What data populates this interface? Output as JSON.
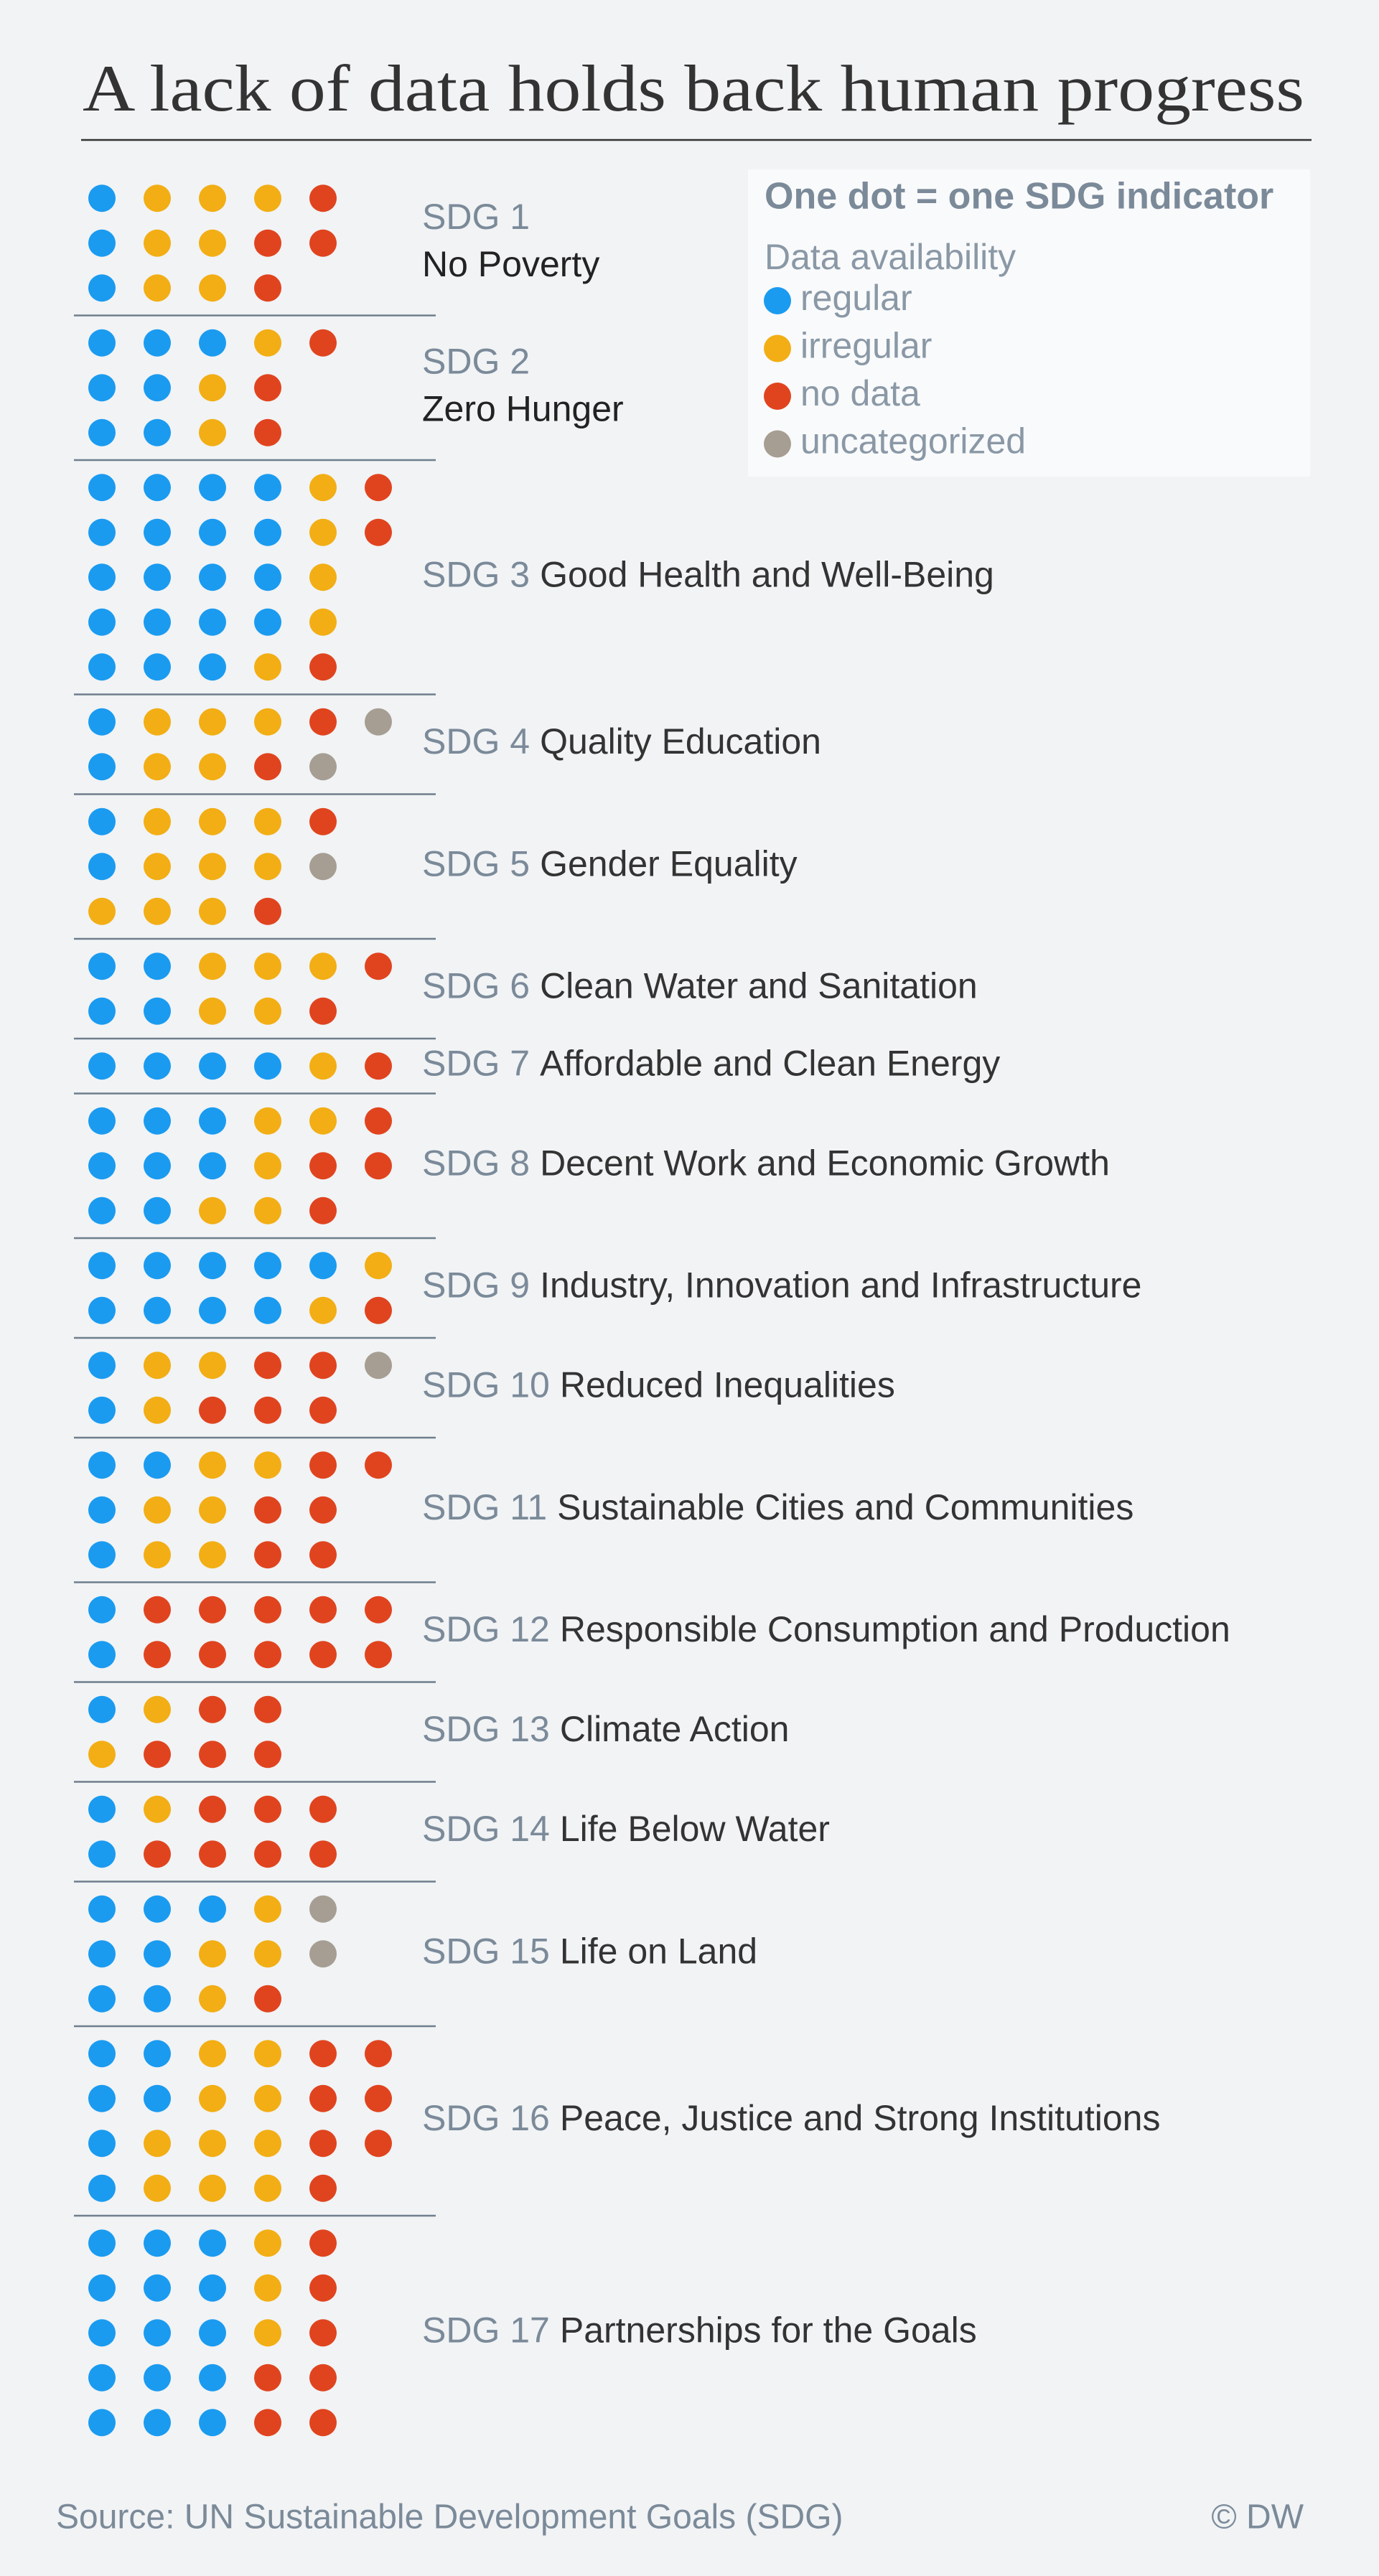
{
  "chart_data": {
    "type": "unit-dot",
    "title": "A lack of data holds back human progress",
    "legend_title": "One dot = one SDG indicator",
    "legend_subtitle": "Data availability",
    "categories": [
      "SDG 1",
      "SDG 2",
      "SDG 3",
      "SDG 4",
      "SDG 5",
      "SDG 6",
      "SDG 7",
      "SDG 8",
      "SDG 9",
      "SDG 10",
      "SDG 11",
      "SDG 12",
      "SDG 13",
      "SDG 14",
      "SDG 15",
      "SDG 16",
      "SDG 17"
    ],
    "goal_names": [
      "No Poverty",
      "Zero Hunger",
      "Good Health and Well-Being",
      "Quality Education",
      "Gender Equality",
      "Clean Water and Sanitation",
      "Affordable and Clean Energy",
      "Decent Work and Economic Growth",
      "Industry, Innovation and Infrastructure",
      "Reduced Inequalities",
      "Sustainable Cities and Communities",
      "Responsible Consumption and Production",
      "Climate Action",
      "Life Below Water",
      "Life on Land",
      "Peace, Justice and Strong Institutions",
      "Partnerships for the Goals"
    ],
    "series": [
      {
        "name": "regular",
        "color": "#1a9bf0",
        "values": [
          3,
          7,
          19,
          2,
          2,
          4,
          4,
          8,
          9,
          2,
          4,
          2,
          1,
          2,
          7,
          6,
          15
        ]
      },
      {
        "name": "irregular",
        "color": "#f2ae14",
        "values": [
          7,
          3,
          5,
          5,
          9,
          5,
          1,
          5,
          2,
          3,
          6,
          0,
          2,
          1,
          4,
          10,
          3
        ]
      },
      {
        "name": "no data",
        "color": "#e0441e",
        "values": [
          4,
          3,
          3,
          2,
          2,
          2,
          1,
          4,
          1,
          5,
          6,
          10,
          5,
          7,
          1,
          7,
          7
        ]
      },
      {
        "name": "uncategorized",
        "color": "#a69e93",
        "values": [
          0,
          0,
          0,
          2,
          1,
          0,
          0,
          0,
          0,
          1,
          0,
          0,
          0,
          0,
          2,
          0,
          0
        ]
      }
    ],
    "source": "Source: UN Sustainable Development Goals (SDG)",
    "credit": "© DW"
  }
}
